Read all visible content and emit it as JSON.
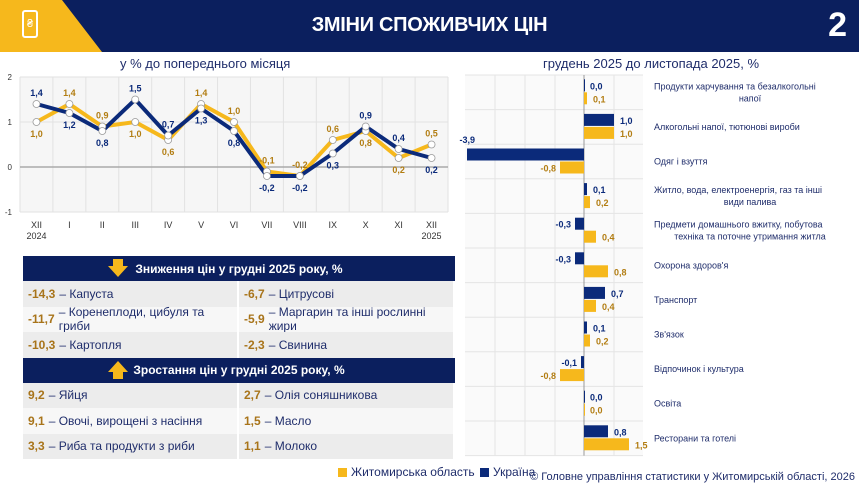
{
  "header": {
    "title": "ЗМІНИ СПОЖИВЧИХ ЦІН",
    "page_number": "2",
    "icon": "hryvnia-price-tag-icon"
  },
  "colors": {
    "region": "#f6b81c",
    "ukraine": "#0b2a7a",
    "navy": "#0b1f5e",
    "value_text_region": "#a8741a"
  },
  "chart_data": [
    {
      "type": "line",
      "title": "у % до попереднього місяця",
      "categories": [
        "XII\n2024",
        "I",
        "II",
        "III",
        "IV",
        "V",
        "VI",
        "VII",
        "VIII",
        "IX",
        "X",
        "XI",
        "XII\n2025"
      ],
      "ylim": [
        -1,
        2
      ],
      "yticks": [
        "2",
        "1",
        "0",
        "-1"
      ],
      "grid": true,
      "series": [
        {
          "name": "Житомирська область",
          "values": [
            1.0,
            1.4,
            0.9,
            1.0,
            0.6,
            1.4,
            1.0,
            -0.1,
            -0.2,
            0.6,
            0.8,
            0.2,
            0.5
          ],
          "labels": [
            "1,0",
            "1,4",
            "0,9",
            "1,0",
            "0,6",
            "1,4",
            "1,0",
            "-0,1",
            "-0,2",
            "0,6",
            "0,8",
            "0,2",
            "0,5"
          ]
        },
        {
          "name": "Україна",
          "values": [
            1.4,
            1.2,
            0.8,
            1.5,
            0.7,
            1.3,
            0.8,
            -0.2,
            -0.2,
            0.3,
            0.9,
            0.4,
            0.2
          ],
          "labels": [
            "1,4",
            "1,2",
            "0,8",
            "1,5",
            "0,7",
            "1,3",
            "0,8",
            "-0,2",
            "-0,2",
            "0,3",
            "0,9",
            "0,4",
            "0,2"
          ]
        }
      ]
    },
    {
      "type": "bar",
      "orientation": "horizontal",
      "title": "грудень 2025 до листопада 2025, %",
      "categories": [
        "Продукти харчування та безалкогольні напої",
        "Алкогольні напої, тютюнові вироби",
        "Одяг і взуття",
        "Житло, вода, електроенергія, газ та інші види палива",
        "Предмети домашнього вжитку, побутова техніка та поточне утримання житла",
        "Охорона здоров'я",
        "Транспорт",
        "Зв'язок",
        "Відпочинок і культура",
        "Освіта",
        "Ресторани та готелі"
      ],
      "series": [
        {
          "name": "Україна",
          "values": [
            0.0,
            1.0,
            -3.9,
            0.1,
            -0.3,
            -0.3,
            0.7,
            0.1,
            -0.1,
            0.0,
            0.8
          ],
          "labels": [
            "0,0",
            "1,0",
            "-3,9",
            "0,1",
            "-0,3",
            "-0,3",
            "0,7",
            "0,1",
            "-0,1",
            "0,0",
            "0,8"
          ]
        },
        {
          "name": "Житомирська область",
          "values": [
            0.1,
            1.0,
            -0.8,
            0.2,
            0.4,
            0.8,
            0.4,
            0.2,
            -0.8,
            0.0,
            1.5
          ],
          "labels": [
            "0,1",
            "1,0",
            "-0,8",
            "0,2",
            "0,4",
            "0,8",
            "0,4",
            "0,2",
            "-0,8",
            "0,0",
            "1,5"
          ]
        }
      ]
    }
  ],
  "table": {
    "decrease_title": "Зниження цін у грудні  2025 року, %",
    "decrease": [
      [
        {
          "v": "-14,3",
          "t": "– Капуста"
        },
        {
          "v": "-6,7",
          "t": "– Цитрусові"
        }
      ],
      [
        {
          "v": "-11,7",
          "t": " – Коренеплоди, цибуля та гриби"
        },
        {
          "v": "-5,9",
          "t": "–  Маргарин та інші рослинні жири"
        }
      ],
      [
        {
          "v": "-10,3",
          "t": "– Картопля"
        },
        {
          "v": "-2,3",
          "t": "– Свинина"
        }
      ]
    ],
    "increase_title": "Зростання цін у грудні 2025 року, %",
    "increase": [
      [
        {
          "v": "9,2",
          "t": "– Яйця"
        },
        {
          "v": "2,7",
          "t": "– Олія соняшникова"
        }
      ],
      [
        {
          "v": "9,1",
          "t": "– Овочі, вирощені з насіння"
        },
        {
          "v": "1,5",
          "t": "– Масло"
        }
      ],
      [
        {
          "v": "3,3",
          "t": "– Риба та продукти з риби"
        },
        {
          "v": "1,1",
          "t": "– Молоко"
        }
      ]
    ]
  },
  "legend": {
    "region": "Житомирська область",
    "ukraine": "Україна"
  },
  "footer": "© Головне управління статистики у Житомирській області, 2026"
}
